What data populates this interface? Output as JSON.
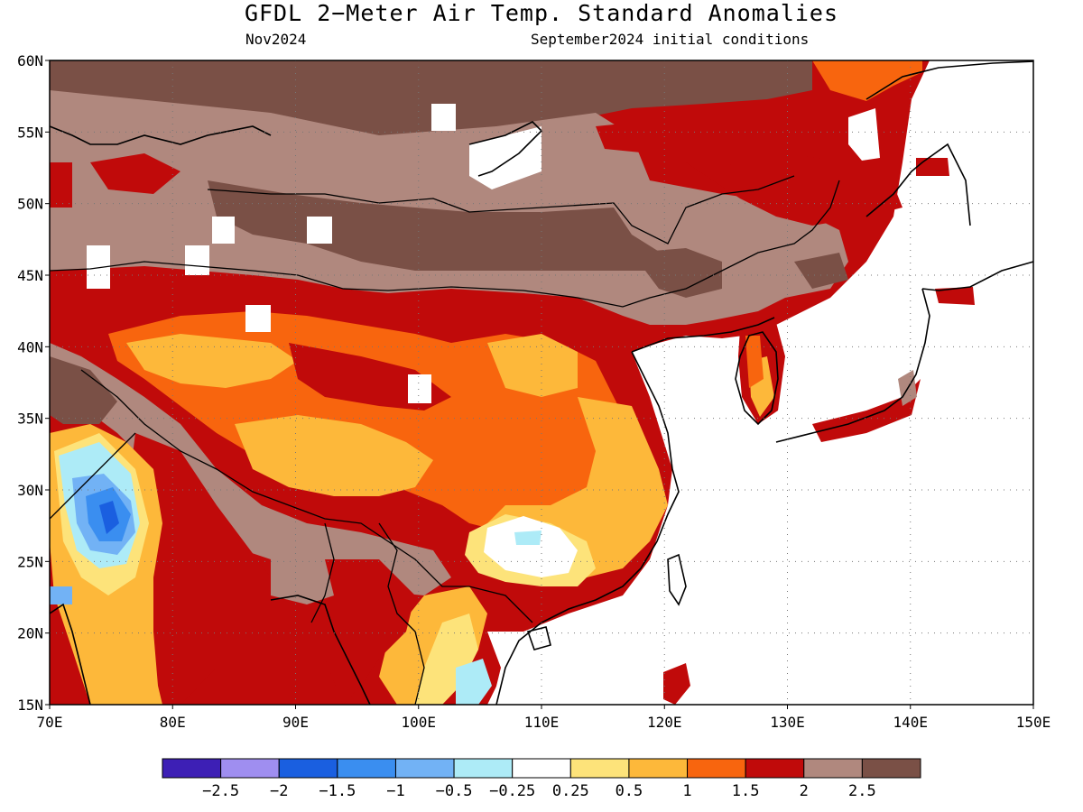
{
  "title": "GFDL 2−Meter Air Temp. Standard Anomalies",
  "subtitle_left": "Nov2024",
  "subtitle_right": "September2024 initial conditions",
  "map": {
    "lon_range": [
      70,
      150
    ],
    "lat_range": [
      15,
      60
    ],
    "lon_ticks": [
      "70E",
      "80E",
      "90E",
      "100E",
      "110E",
      "120E",
      "130E",
      "140E",
      "150E"
    ],
    "lat_ticks": [
      "15N",
      "20N",
      "25N",
      "30N",
      "35N",
      "40N",
      "45N",
      "50N",
      "55N",
      "60N"
    ],
    "grid": "dotted"
  },
  "colors": {
    "c0": "#3d1fb5",
    "c1": "#9f8ef0",
    "c2": "#1a5fe0",
    "c3": "#3a8ef0",
    "c4": "#72b2f5",
    "c5": "#adebf7",
    "c6": "#ffffff",
    "c7": "#fde37a",
    "c8": "#fdb83a",
    "c9": "#f8650e",
    "c10": "#c00a0a",
    "c11": "#b0887e",
    "c12": "#7a5046"
  },
  "colorbar": {
    "colors": [
      "#3d1fb5",
      "#9f8ef0",
      "#1a5fe0",
      "#3a8ef0",
      "#72b2f5",
      "#adebf7",
      "#ffffff",
      "#fde37a",
      "#fdb83a",
      "#f8650e",
      "#c00a0a",
      "#b0887e",
      "#7a5046"
    ],
    "labels": [
      "−2.5",
      "−2",
      "−1.5",
      "−1",
      "−0.5",
      "−0.25",
      "0.25",
      "0.5",
      "1",
      "1.5",
      "2",
      "2.5"
    ]
  }
}
